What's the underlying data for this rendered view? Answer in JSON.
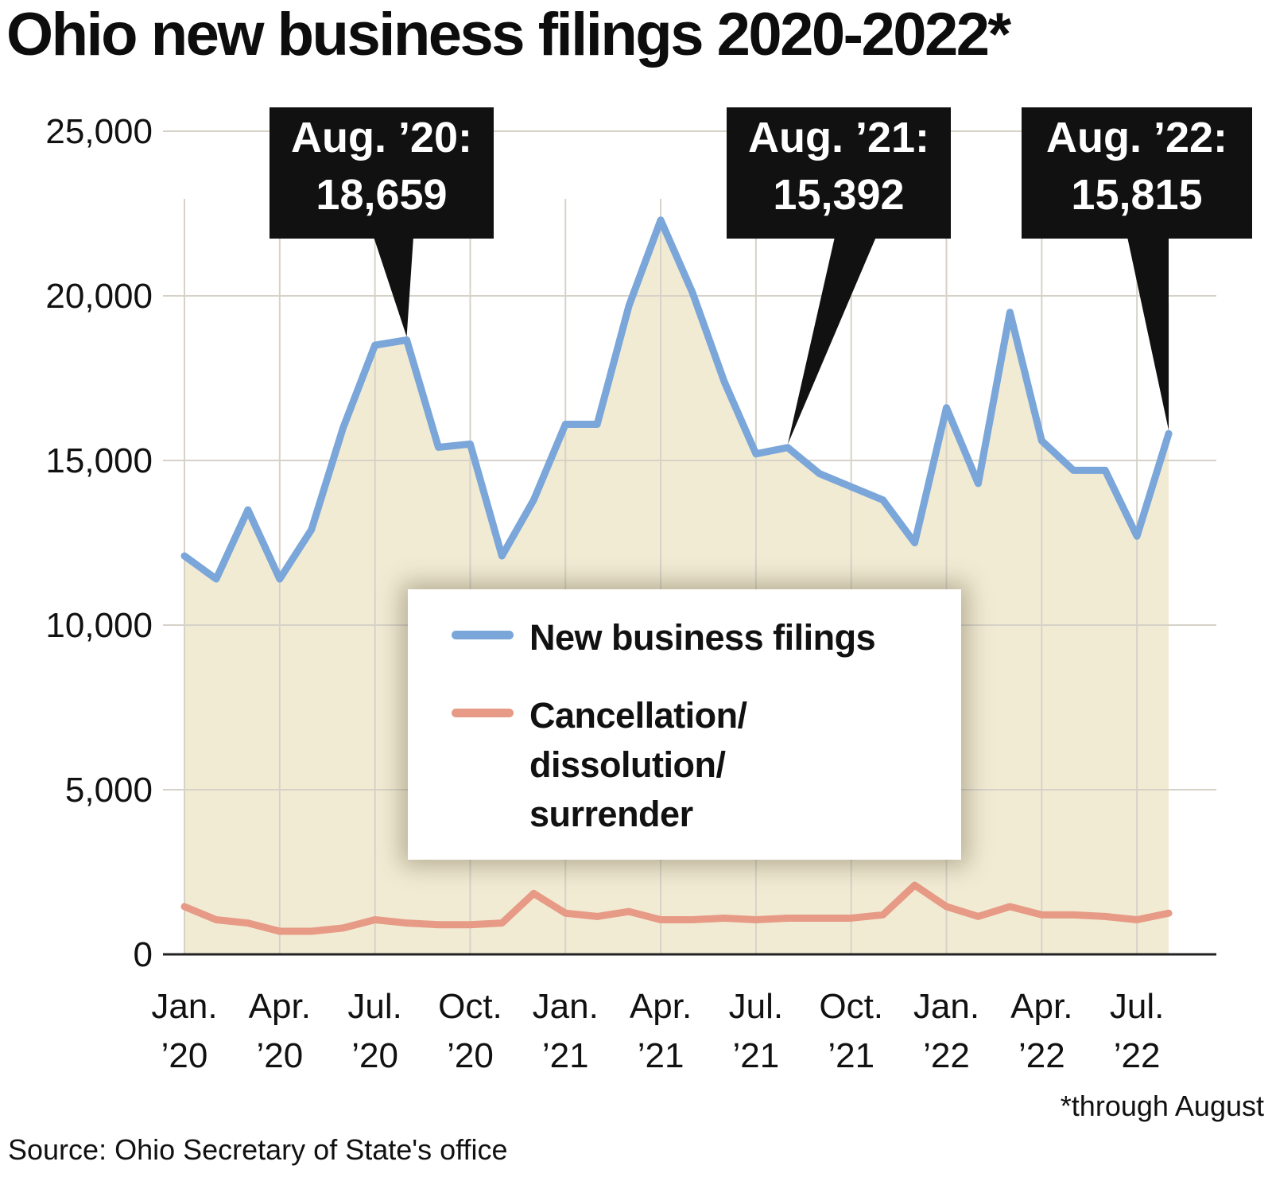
{
  "chart_data": {
    "type": "line",
    "title": "Ohio new business filings 2020-2022*",
    "footnote": "*through August",
    "source": "Source: Ohio Secretary of State's office",
    "x": [
      "2020-01",
      "2020-02",
      "2020-03",
      "2020-04",
      "2020-05",
      "2020-06",
      "2020-07",
      "2020-08",
      "2020-09",
      "2020-10",
      "2020-11",
      "2020-12",
      "2021-01",
      "2021-02",
      "2021-03",
      "2021-04",
      "2021-05",
      "2021-06",
      "2021-07",
      "2021-08",
      "2021-09",
      "2021-10",
      "2021-11",
      "2021-12",
      "2022-01",
      "2022-02",
      "2022-03",
      "2022-04",
      "2022-05",
      "2022-06",
      "2022-07",
      "2022-08"
    ],
    "x_tick_labels": [
      {
        "x": "2020-01",
        "lines": [
          "Jan.",
          "’20"
        ]
      },
      {
        "x": "2020-04",
        "lines": [
          "Apr.",
          "’20"
        ]
      },
      {
        "x": "2020-07",
        "lines": [
          "Jul.",
          "’20"
        ]
      },
      {
        "x": "2020-10",
        "lines": [
          "Oct.",
          "’20"
        ]
      },
      {
        "x": "2021-01",
        "lines": [
          "Jan.",
          "’21"
        ]
      },
      {
        "x": "2021-04",
        "lines": [
          "Apr.",
          "’21"
        ]
      },
      {
        "x": "2021-07",
        "lines": [
          "Jul.",
          "’21"
        ]
      },
      {
        "x": "2021-10",
        "lines": [
          "Oct.",
          "’21"
        ]
      },
      {
        "x": "2022-01",
        "lines": [
          "Jan.",
          "’22"
        ]
      },
      {
        "x": "2022-04",
        "lines": [
          "Apr.",
          "’22"
        ]
      },
      {
        "x": "2022-07",
        "lines": [
          "Jul.",
          "’22"
        ]
      }
    ],
    "y_ticks": [
      {
        "value": 0,
        "label": "0"
      },
      {
        "value": 5000,
        "label": "5,000"
      },
      {
        "value": 10000,
        "label": "10,000"
      },
      {
        "value": 15000,
        "label": "15,000"
      },
      {
        "value": 20000,
        "label": "20,000"
      },
      {
        "value": 25000,
        "label": "25,000"
      }
    ],
    "ylim": [
      0,
      25000
    ],
    "grid": true,
    "legend_position": "center",
    "series": [
      {
        "name": "New business filings",
        "color": "#7aa6d9",
        "fill": "#f2ebd4",
        "values": [
          12100,
          11400,
          13500,
          11400,
          12900,
          16000,
          18500,
          18659,
          15400,
          15500,
          12100,
          13800,
          16100,
          16100,
          19700,
          22300,
          20100,
          17400,
          15200,
          15392,
          14600,
          14200,
          13800,
          12500,
          16600,
          14300,
          19500,
          15600,
          14700,
          14700,
          12700,
          15815
        ]
      },
      {
        "name": "Cancellation/\ndissolution/\nsurrender",
        "color": "#e79a85",
        "values": [
          1450,
          1050,
          950,
          700,
          700,
          800,
          1050,
          950,
          900,
          900,
          950,
          1850,
          1250,
          1150,
          1300,
          1050,
          1050,
          1100,
          1050,
          1100,
          1100,
          1100,
          1200,
          2100,
          1450,
          1150,
          1450,
          1200,
          1200,
          1150,
          1050,
          1250
        ]
      }
    ],
    "annotations": [
      {
        "x": "2020-08",
        "lines": [
          "Aug. ’20:",
          "18,659"
        ]
      },
      {
        "x": "2021-08",
        "lines": [
          "Aug. ’21:",
          "15,392"
        ]
      },
      {
        "x": "2022-08",
        "lines": [
          "Aug. ’22:",
          "15,815"
        ]
      }
    ]
  }
}
